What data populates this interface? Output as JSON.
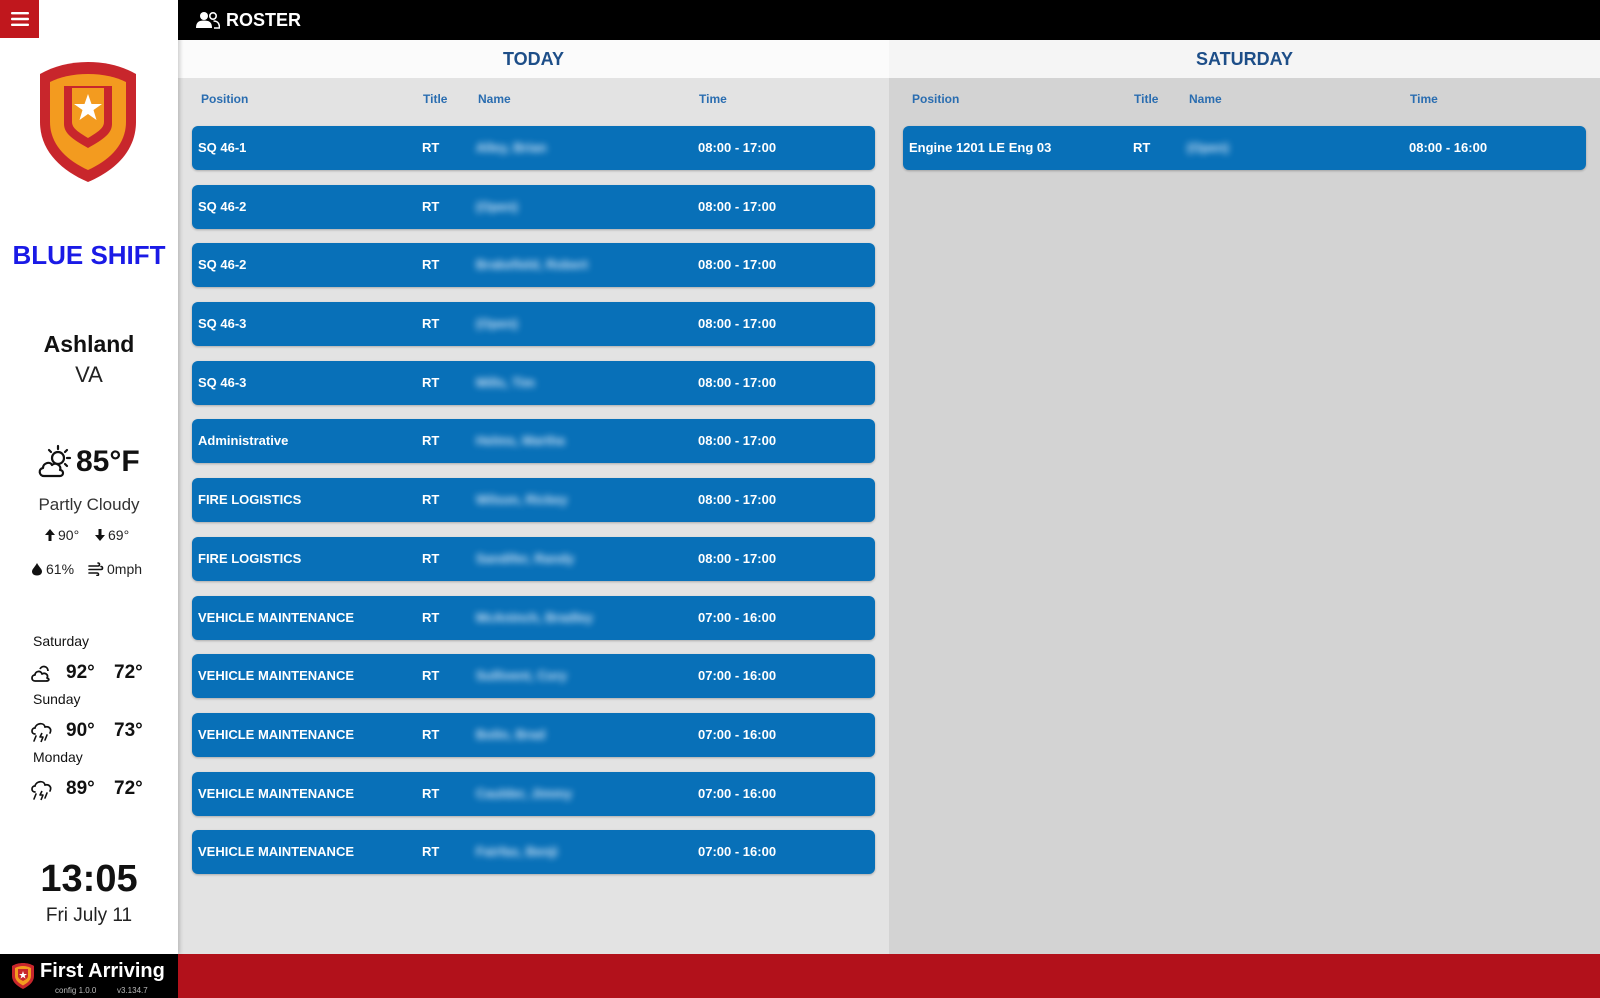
{
  "app": {
    "title": "ROSTER",
    "accent": "#c0171d",
    "row_color": "#0870b8",
    "header_text_color": "#1d4e88",
    "shift_color": "#1a1ae6"
  },
  "sidebar": {
    "menu_icon": "hamburger-menu-icon",
    "shift": "BLUE SHIFT",
    "location": {
      "city": "Ashland",
      "state": "VA"
    },
    "weather": {
      "icon": "partly-cloudy-icon",
      "temp": "85°F",
      "condition": "Partly Cloudy",
      "high": "90°",
      "low": "69°",
      "humidity": "61%",
      "wind": "0mph"
    },
    "forecast": [
      {
        "day": "Saturday",
        "icon": "cloud-sun-icon",
        "high": "92°",
        "low": "72°"
      },
      {
        "day": "Sunday",
        "icon": "thunderstorm-icon",
        "high": "90°",
        "low": "73°"
      },
      {
        "day": "Monday",
        "icon": "thunderstorm-icon",
        "high": "89°",
        "low": "72°"
      }
    ],
    "clock": "13:05",
    "date": "Fri July 11"
  },
  "columns": {
    "position": "Position",
    "title": "Title",
    "name": "Name",
    "time": "Time"
  },
  "today": {
    "header": "TODAY",
    "rows": [
      {
        "position": "SQ 46-1",
        "title": "RT",
        "name": "Alley, Brian",
        "time": "08:00 - 17:00"
      },
      {
        "position": "SQ 46-2",
        "title": "RT",
        "name": "(Open)",
        "time": "08:00 - 17:00"
      },
      {
        "position": "SQ 46-2",
        "title": "RT",
        "name": "Brakefield, Robert",
        "time": "08:00 - 17:00"
      },
      {
        "position": "SQ 46-3",
        "title": "RT",
        "name": "(Open)",
        "time": "08:00 - 17:00"
      },
      {
        "position": "SQ 46-3",
        "title": "RT",
        "name": "Mills, Tim",
        "time": "08:00 - 17:00"
      },
      {
        "position": "Administrative",
        "title": "RT",
        "name": "Helms, Martha",
        "time": "08:00 - 17:00"
      },
      {
        "position": "FIRE LOGISTICS",
        "title": "RT",
        "name": "Wilson, Rickey",
        "time": "08:00 - 17:00"
      },
      {
        "position": "FIRE LOGISTICS",
        "title": "RT",
        "name": "Sandifer, Randy",
        "time": "08:00 - 17:00"
      },
      {
        "position": "VEHICLE MAINTENANCE",
        "title": "RT",
        "name": "McAninch, Bradley",
        "time": "07:00 - 16:00"
      },
      {
        "position": "VEHICLE MAINTENANCE",
        "title": "RT",
        "name": "Sullivent, Cory",
        "time": "07:00 - 16:00"
      },
      {
        "position": "VEHICLE MAINTENANCE",
        "title": "RT",
        "name": "Bolin, Brad",
        "time": "07:00 - 16:00"
      },
      {
        "position": "VEHICLE MAINTENANCE",
        "title": "RT",
        "name": "Caulder, Jimmy",
        "time": "07:00 - 16:00"
      },
      {
        "position": "VEHICLE MAINTENANCE",
        "title": "RT",
        "name": "Fairfax, Benji",
        "time": "07:00 - 16:00"
      }
    ]
  },
  "saturday": {
    "header": "SATURDAY",
    "rows": [
      {
        "position": "Engine 1201 LE Eng 03",
        "title": "RT",
        "name": "(Open)",
        "time": "08:00 - 16:00"
      }
    ]
  },
  "footer": {
    "brand": "First Arriving",
    "config_version": "config 1.0.0",
    "app_version": "v3.134.7",
    "color": "#b2111b"
  }
}
